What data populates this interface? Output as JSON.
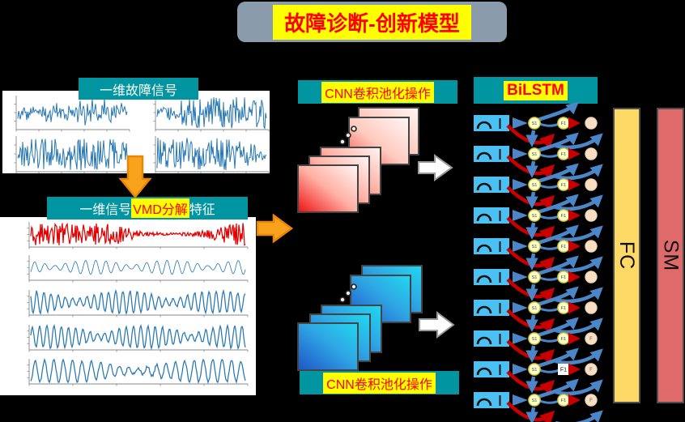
{
  "banner": {
    "title": "故障诊断-创新模型"
  },
  "sections": {
    "raw_signal_label": "一维故障信号",
    "vmd_label": {
      "prefix": "一维信号",
      "highlight": "VMD分解",
      "suffix": "特征"
    },
    "cnn_top_label": "CNN卷积池化操作",
    "cnn_bottom_label": "CNN卷积池化操作",
    "bilstm_label": "BiLSTM",
    "fc_label": "FC",
    "sm_label": "SM"
  },
  "colors": {
    "teal": "#0095A0",
    "yellow": "#FFFF00",
    "red_text": "#FF0000",
    "banner_bg": "#8A9BAC",
    "arrow_orange": "#F9A21B",
    "arrow_orange_border": "#E8860B",
    "blue": "#4A86C8",
    "red": "#C80000",
    "cell_rect_blue": "#4AC1F2",
    "node_yellow": "#FFFFC9",
    "node_yellow_border": "#C9BB32",
    "node_out": "#F8DFC4",
    "node_out_border": "#EACDA9",
    "fc_fill": "#FFD966",
    "sm_fill": "#E06A6A",
    "bar_border": "#4D4D4D",
    "map_red_deep": "#EE1111",
    "map_red_mid": "#F55548",
    "map_red_light": "#FFF7F5",
    "map_blue_deep": "#1E55C8",
    "map_blue_cyan": "#20D8F0",
    "map_border": "#444444",
    "white_arrow": "#FFFFFF",
    "white_arrow_border": "#999999",
    "signal_blue": "#2777B4",
    "signal_red": "#E80000",
    "axis_gray": "#888888"
  },
  "bilstm": {
    "row_count": 10,
    "rows": [
      {
        "s": "S1",
        "f": "F1",
        "out": "",
        "f_node": "circle"
      },
      {
        "s": "S1",
        "f": "F1",
        "out": "",
        "f_node": "circle"
      },
      {
        "s": "S1",
        "f": "F1",
        "out": "",
        "f_node": "circle"
      },
      {
        "s": "S1",
        "f": "F1",
        "out": "",
        "f_node": "circle"
      },
      {
        "s": "S1",
        "f": "F1",
        "out": "",
        "f_node": "circle"
      },
      {
        "s": "S1",
        "f": "F1",
        "out": "",
        "f_node": "circle"
      },
      {
        "s": "S1",
        "f": "F1",
        "out": "",
        "f_node": "circle"
      },
      {
        "s": "S1",
        "f": "F1",
        "out": "F",
        "f_node": "circle"
      },
      {
        "s": "S1",
        "f": "F1",
        "out": "F",
        "f_node": "square"
      },
      {
        "s": "S1",
        "f": "F1",
        "out": "F",
        "f_node": "circle"
      }
    ]
  },
  "signal_panels": {
    "raw": {
      "subplots": [
        {
          "style": "noisy",
          "seed": 11
        },
        {
          "style": "burst",
          "seed": 22
        },
        {
          "style": "noisyburst",
          "seed": 33
        },
        {
          "style": "quietburst",
          "seed": 44
        }
      ]
    },
    "vmd": {
      "rows": [
        {
          "style": "burst",
          "color": "#E80000",
          "seed": 7
        },
        {
          "style": "sparse",
          "color": "#2777B4",
          "seed": 8
        },
        {
          "style": "am",
          "color": "#2777B4",
          "seed": 9
        },
        {
          "style": "am",
          "color": "#2777B4",
          "seed": 10
        },
        {
          "style": "amslow",
          "color": "#2777B4",
          "seed": 12
        }
      ]
    }
  }
}
